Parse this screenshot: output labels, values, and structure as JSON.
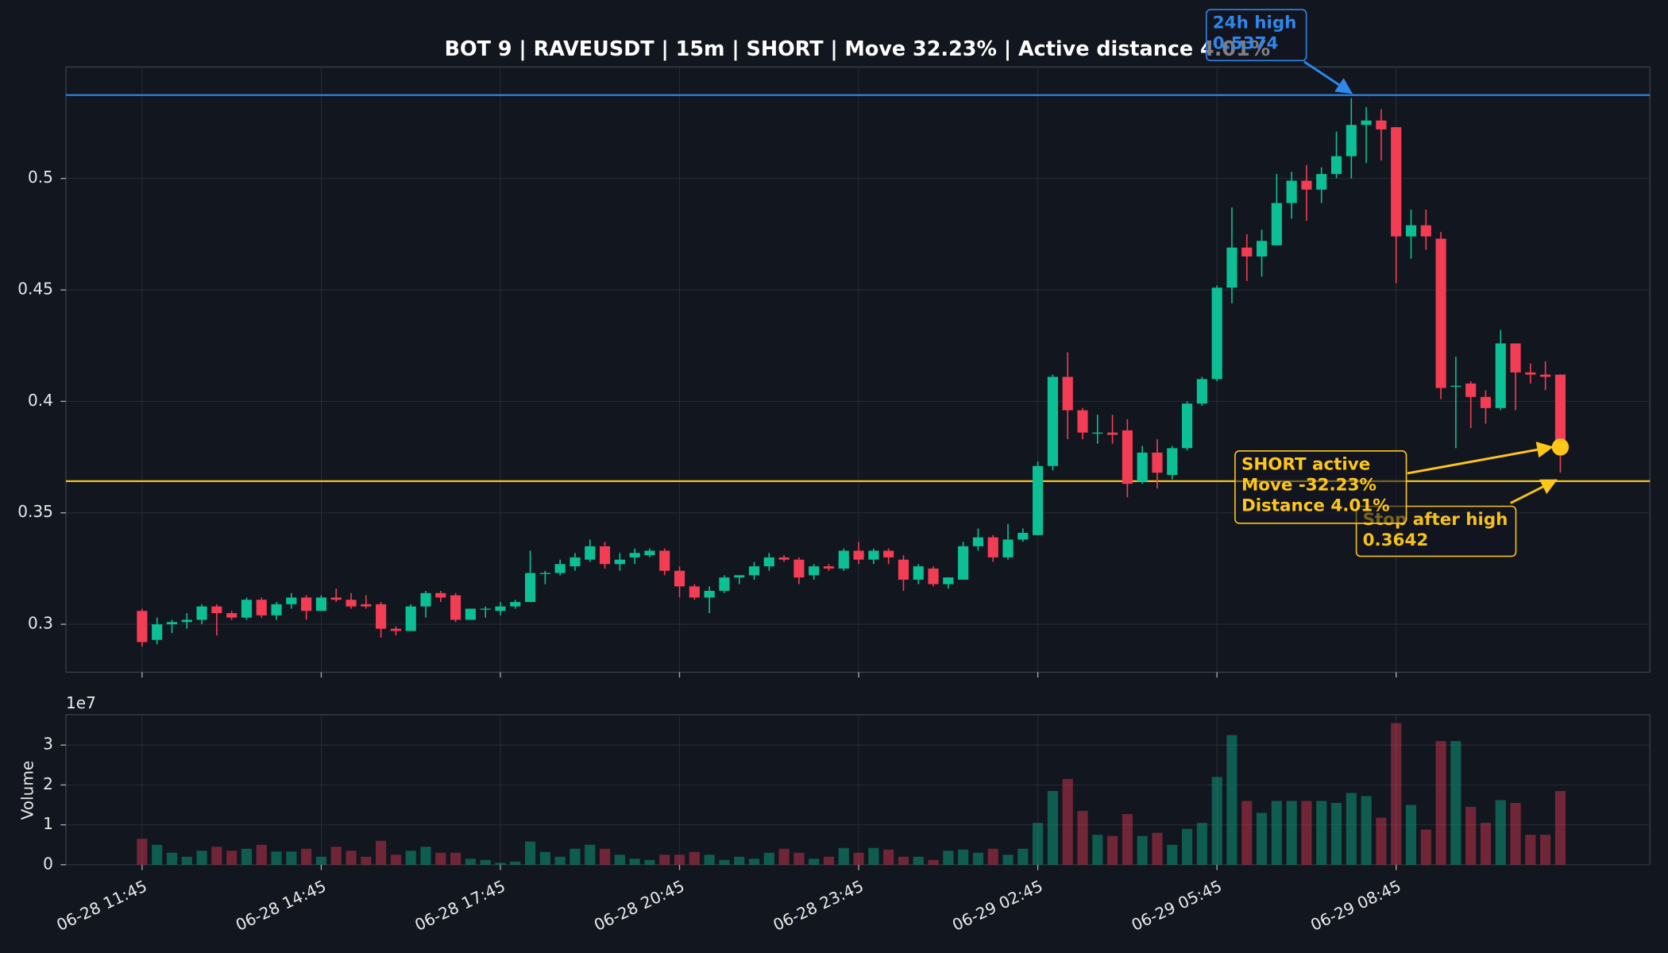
{
  "chart_data": {
    "type": "candlestick",
    "title": "BOT 9 | RAVEUSDT | 15m | SHORT | Move 32.23% | Active distance 4.01%",
    "categories": [
      "06-28 11:45",
      null,
      null,
      null,
      null,
      null,
      null,
      null,
      null,
      null,
      null,
      null,
      "06-28 14:45",
      null,
      null,
      null,
      null,
      null,
      null,
      null,
      null,
      null,
      null,
      null,
      "06-28 17:45",
      null,
      null,
      null,
      null,
      null,
      null,
      null,
      null,
      null,
      null,
      null,
      "06-28 20:45",
      null,
      null,
      null,
      null,
      null,
      null,
      null,
      null,
      null,
      null,
      null,
      "06-28 23:45",
      null,
      null,
      null,
      null,
      null,
      null,
      null,
      null,
      null,
      null,
      null,
      "06-29 02:45",
      null,
      null,
      null,
      null,
      null,
      null,
      null,
      null,
      null,
      null,
      null,
      "06-29 05:45",
      null,
      null,
      null,
      null,
      null,
      null,
      null,
      null,
      null,
      null,
      null,
      "06-29 08:45",
      null,
      null,
      null,
      null,
      null,
      null,
      null,
      null,
      null,
      null,
      null
    ],
    "open": [
      0.306,
      0.293,
      0.3,
      0.301,
      0.302,
      0.308,
      0.305,
      0.303,
      0.311,
      0.304,
      0.309,
      0.312,
      0.306,
      0.312,
      0.311,
      0.309,
      0.309,
      0.298,
      0.297,
      0.308,
      0.314,
      0.313,
      0.302,
      0.307,
      0.306,
      0.308,
      0.31,
      0.323,
      0.323,
      0.326,
      0.329,
      0.335,
      0.327,
      0.33,
      0.331,
      0.333,
      0.324,
      0.317,
      0.312,
      0.315,
      0.321,
      0.322,
      0.326,
      0.33,
      0.329,
      0.322,
      0.326,
      0.325,
      0.333,
      0.329,
      0.333,
      0.329,
      0.32,
      0.325,
      0.318,
      0.32,
      0.335,
      0.339,
      0.33,
      0.338,
      0.34,
      0.371,
      0.411,
      0.396,
      0.386,
      0.386,
      0.387,
      0.364,
      0.377,
      0.367,
      0.379,
      0.399,
      0.41,
      0.451,
      0.469,
      0.465,
      0.47,
      0.489,
      0.499,
      0.495,
      0.502,
      0.51,
      0.524,
      0.526,
      0.523,
      0.474,
      0.479,
      0.473,
      0.407,
      0.408,
      0.402,
      0.397,
      0.426,
      0.413,
      0.412,
      0.412
    ],
    "high": [
      0.307,
      0.303,
      0.302,
      0.305,
      0.309,
      0.309,
      0.306,
      0.312,
      0.312,
      0.31,
      0.314,
      0.313,
      0.313,
      0.316,
      0.314,
      0.313,
      0.31,
      0.299,
      0.309,
      0.315,
      0.315,
      0.314,
      0.307,
      0.308,
      0.31,
      0.311,
      0.333,
      0.324,
      0.329,
      0.332,
      0.338,
      0.337,
      0.332,
      0.334,
      0.334,
      0.334,
      0.326,
      0.318,
      0.317,
      0.322,
      0.322,
      0.328,
      0.332,
      0.331,
      0.33,
      0.327,
      0.327,
      0.334,
      0.337,
      0.334,
      0.334,
      0.331,
      0.327,
      0.326,
      0.321,
      0.337,
      0.343,
      0.34,
      0.345,
      0.343,
      0.373,
      0.412,
      0.422,
      0.397,
      0.394,
      0.394,
      0.392,
      0.38,
      0.383,
      0.38,
      0.4,
      0.411,
      0.452,
      0.487,
      0.475,
      0.477,
      0.502,
      0.503,
      0.506,
      0.505,
      0.521,
      0.536,
      0.532,
      0.531,
      0.523,
      0.486,
      0.486,
      0.476,
      0.42,
      0.409,
      0.405,
      0.432,
      0.426,
      0.417,
      0.418,
      0.412
    ],
    "low": [
      0.29,
      0.291,
      0.296,
      0.298,
      0.3,
      0.295,
      0.302,
      0.302,
      0.303,
      0.302,
      0.307,
      0.302,
      0.306,
      0.31,
      0.307,
      0.307,
      0.294,
      0.295,
      0.297,
      0.303,
      0.31,
      0.301,
      0.302,
      0.303,
      0.304,
      0.307,
      0.31,
      0.318,
      0.322,
      0.324,
      0.328,
      0.325,
      0.324,
      0.327,
      0.33,
      0.322,
      0.312,
      0.311,
      0.305,
      0.314,
      0.318,
      0.32,
      0.324,
      0.328,
      0.318,
      0.32,
      0.324,
      0.324,
      0.327,
      0.327,
      0.327,
      0.315,
      0.318,
      0.317,
      0.316,
      0.32,
      0.333,
      0.328,
      0.329,
      0.337,
      0.34,
      0.369,
      0.383,
      0.383,
      0.381,
      0.381,
      0.357,
      0.363,
      0.361,
      0.365,
      0.378,
      0.398,
      0.409,
      0.444,
      0.454,
      0.456,
      0.47,
      0.482,
      0.481,
      0.489,
      0.5,
      0.5,
      0.507,
      0.508,
      0.453,
      0.464,
      0.468,
      0.401,
      0.379,
      0.388,
      0.39,
      0.396,
      0.396,
      0.408,
      0.405,
      0.368
    ],
    "close": [
      0.292,
      0.3,
      0.301,
      0.302,
      0.308,
      0.305,
      0.303,
      0.311,
      0.304,
      0.309,
      0.312,
      0.306,
      0.312,
      0.311,
      0.308,
      0.308,
      0.298,
      0.297,
      0.308,
      0.314,
      0.312,
      0.302,
      0.307,
      0.307,
      0.308,
      0.31,
      0.323,
      0.323,
      0.327,
      0.33,
      0.335,
      0.327,
      0.329,
      0.332,
      0.333,
      0.324,
      0.317,
      0.312,
      0.315,
      0.321,
      0.322,
      0.326,
      0.33,
      0.329,
      0.321,
      0.326,
      0.325,
      0.333,
      0.329,
      0.333,
      0.33,
      0.32,
      0.326,
      0.318,
      0.321,
      0.335,
      0.339,
      0.33,
      0.338,
      0.341,
      0.371,
      0.411,
      0.396,
      0.386,
      0.386,
      0.385,
      0.363,
      0.377,
      0.368,
      0.379,
      0.399,
      0.41,
      0.451,
      0.469,
      0.465,
      0.472,
      0.489,
      0.499,
      0.495,
      0.502,
      0.51,
      0.524,
      0.526,
      0.522,
      0.474,
      0.479,
      0.474,
      0.406,
      0.407,
      0.402,
      0.397,
      0.426,
      0.413,
      0.412,
      0.411,
      0.38
    ],
    "volume": [
      0.65,
      0.5,
      0.3,
      0.2,
      0.35,
      0.45,
      0.35,
      0.4,
      0.5,
      0.33,
      0.33,
      0.4,
      0.2,
      0.45,
      0.35,
      0.2,
      0.6,
      0.25,
      0.35,
      0.45,
      0.3,
      0.3,
      0.15,
      0.12,
      0.05,
      0.08,
      0.58,
      0.32,
      0.2,
      0.4,
      0.5,
      0.4,
      0.25,
      0.15,
      0.12,
      0.25,
      0.25,
      0.32,
      0.25,
      0.12,
      0.2,
      0.15,
      0.3,
      0.4,
      0.3,
      0.15,
      0.2,
      0.42,
      0.3,
      0.42,
      0.38,
      0.2,
      0.2,
      0.12,
      0.35,
      0.38,
      0.3,
      0.4,
      0.25,
      0.4,
      1.05,
      1.85,
      2.15,
      1.35,
      0.75,
      0.72,
      1.27,
      0.72,
      0.8,
      0.5,
      0.9,
      1.05,
      2.2,
      3.25,
      1.6,
      1.3,
      1.6,
      1.6,
      1.6,
      1.6,
      1.55,
      1.8,
      1.72,
      1.18,
      3.55,
      1.5,
      0.88,
      3.1,
      3.1,
      1.45,
      1.05,
      1.62,
      1.55,
      0.75,
      0.75,
      1.85
    ],
    "up_color": "#0dbf94",
    "down_color": "#f23d55",
    "ylim": [
      0.2785,
      0.55
    ],
    "yticks": [
      0.3,
      0.35,
      0.4,
      0.45,
      0.5
    ],
    "volume_label": "Volume",
    "volume_offset": "1e7",
    "volume_ylim": [
      0,
      3.76
    ],
    "volume_yticks": [
      0,
      1,
      2,
      3
    ],
    "grid": true,
    "high_line": {
      "value": 0.5374,
      "color": "#2f86eb",
      "lines": [
        "24h high",
        "0.5374"
      ]
    },
    "stop_line": {
      "value": 0.3642,
      "color": "#f5c21b",
      "lines": [
        "Stop after high",
        "0.3642"
      ]
    },
    "marker": {
      "value": 0.3795,
      "color": "#ffc61a",
      "lines": [
        "SHORT active",
        "Move -32.23%",
        "Distance 4.01%"
      ]
    }
  }
}
